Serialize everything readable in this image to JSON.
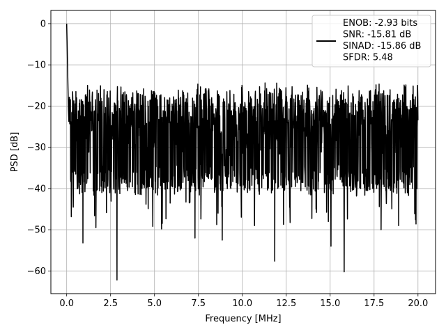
{
  "chart_data": {
    "type": "line",
    "xlabel": "Frequency [MHz]",
    "ylabel": "PSD [dB]",
    "xlim": [
      -0.9,
      21.0
    ],
    "ylim": [
      -65.5,
      3.2
    ],
    "x_ticks": [
      0.0,
      2.5,
      5.0,
      7.5,
      10.0,
      12.5,
      15.0,
      17.5,
      20.0
    ],
    "x_tick_labels": [
      "0.0",
      "2.5",
      "5.0",
      "7.5",
      "10.0",
      "12.5",
      "15.0",
      "17.5",
      "20.0"
    ],
    "y_ticks": [
      0,
      -10,
      -20,
      -30,
      -40,
      -50,
      -60
    ],
    "y_tick_labels": [
      "0",
      "−10",
      "−20",
      "−30",
      "−40",
      "−50",
      "−60"
    ],
    "grid": true,
    "legend_position": "top-right",
    "legend_lines": [
      "ENOB: -2.93 bits",
      "SNR: -15.81 dB",
      "SINAD: -15.86 dB",
      "SFDR: 5.48"
    ],
    "series": [
      {
        "color": "#000000",
        "x_start": 0.0,
        "x_end": 20.0,
        "noise_floor_mean": -27,
        "noise_band_top": -18,
        "noise_band_bottom": -40,
        "peaks": [
          {
            "x": 0.0,
            "y": 0.0
          },
          {
            "x": 0.03,
            "y": -6
          },
          {
            "x": 0.1,
            "y": -21
          }
        ],
        "dips": [
          {
            "x": 0.93,
            "y": -53.2
          },
          {
            "x": 1.66,
            "y": -49.5
          },
          {
            "x": 2.87,
            "y": -62.2
          },
          {
            "x": 4.9,
            "y": -49.2
          },
          {
            "x": 5.4,
            "y": -49.8
          },
          {
            "x": 7.3,
            "y": -52.0
          },
          {
            "x": 8.85,
            "y": -52.5
          },
          {
            "x": 10.7,
            "y": -49.0
          },
          {
            "x": 11.85,
            "y": -57.6
          },
          {
            "x": 14.2,
            "y": -45.0
          },
          {
            "x": 15.05,
            "y": -54.0
          },
          {
            "x": 15.8,
            "y": -60.2
          },
          {
            "x": 17.9,
            "y": -50.0
          },
          {
            "x": 18.9,
            "y": -49.0
          }
        ]
      }
    ]
  }
}
